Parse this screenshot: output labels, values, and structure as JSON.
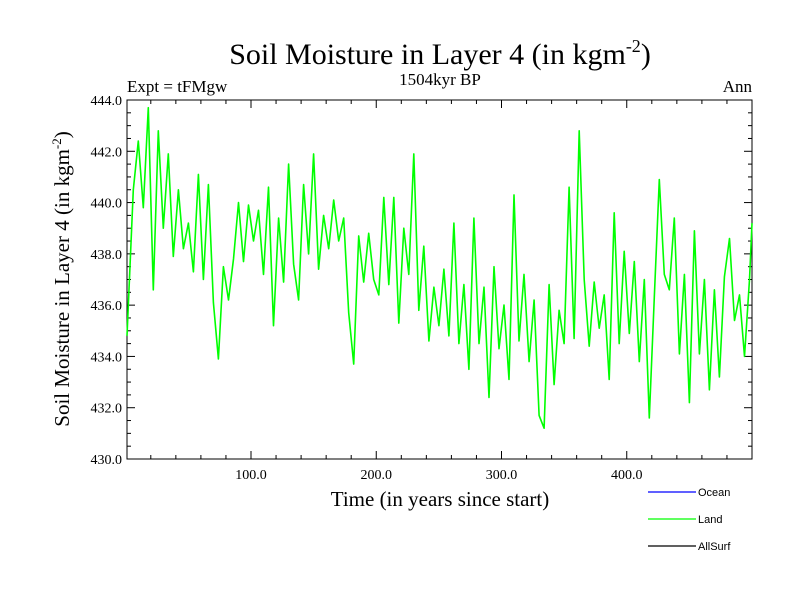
{
  "chart_data": {
    "type": "line",
    "title": "Soil Moisture in Layer 4 (in kgm",
    "title_superscript": "-2",
    "title_suffix": ")",
    "subtitle": "1504kyr BP",
    "left_label": "Expt = tFMgw",
    "right_label": "Ann",
    "xlabel": "Time (in years since start)",
    "ylabel": "Soil Moisture in Layer 4 (in kgm",
    "ylabel_superscript": "-2",
    "ylabel_suffix": ")",
    "xlim": [
      1,
      500
    ],
    "ylim": [
      430,
      444
    ],
    "x_ticks": [
      100,
      200,
      300,
      400
    ],
    "x_tick_labels": [
      "100.0",
      "200.0",
      "300.0",
      "400.0"
    ],
    "y_ticks": [
      430,
      432,
      434,
      436,
      438,
      440,
      442,
      444
    ],
    "y_tick_labels": [
      "430.0",
      "432.0",
      "434.0",
      "436.0",
      "438.0",
      "440.0",
      "442.0",
      "444.0"
    ],
    "legend_position": "bottom-right",
    "series": [
      {
        "name": "Ocean",
        "color": "#0000ff",
        "x": [],
        "values": []
      },
      {
        "name": "Land",
        "color": "#00ff00",
        "x": [
          1,
          6,
          10,
          14,
          18,
          22,
          26,
          30,
          34,
          38,
          42,
          46,
          50,
          54,
          58,
          62,
          66,
          70,
          74,
          78,
          82,
          86,
          90,
          94,
          98,
          102,
          106,
          110,
          114,
          118,
          122,
          126,
          130,
          134,
          138,
          142,
          146,
          150,
          154,
          158,
          162,
          166,
          170,
          174,
          178,
          182,
          186,
          190,
          194,
          198,
          202,
          206,
          210,
          214,
          218,
          222,
          226,
          230,
          234,
          238,
          242,
          246,
          250,
          254,
          258,
          262,
          266,
          270,
          274,
          278,
          282,
          286,
          290,
          294,
          298,
          302,
          306,
          310,
          314,
          318,
          322,
          326,
          330,
          334,
          338,
          342,
          346,
          350,
          354,
          358,
          362,
          366,
          370,
          374,
          378,
          382,
          386,
          390,
          394,
          398,
          402,
          406,
          410,
          414,
          418,
          422,
          426,
          430,
          434,
          438,
          442,
          446,
          450,
          454,
          458,
          462,
          466,
          470,
          474,
          478,
          482,
          486,
          490,
          494,
          498,
          500
        ],
        "values": [
          434.8,
          440.5,
          442.4,
          439.8,
          443.7,
          436.6,
          442.8,
          439.0,
          441.9,
          437.9,
          440.5,
          438.2,
          439.2,
          437.3,
          441.1,
          437.0,
          440.7,
          436.1,
          433.9,
          437.5,
          436.2,
          437.8,
          440.0,
          437.7,
          439.9,
          438.5,
          439.7,
          437.2,
          440.6,
          435.2,
          439.4,
          436.9,
          441.5,
          437.6,
          436.2,
          440.7,
          438.0,
          441.9,
          437.4,
          439.5,
          438.2,
          440.1,
          438.5,
          439.4,
          435.7,
          433.7,
          438.7,
          436.9,
          438.8,
          437.0,
          436.4,
          440.2,
          436.8,
          440.2,
          435.3,
          439.0,
          437.2,
          441.9,
          435.8,
          438.3,
          434.6,
          436.7,
          435.2,
          437.4,
          434.8,
          439.2,
          434.5,
          436.8,
          433.5,
          439.4,
          434.5,
          436.7,
          432.4,
          437.5,
          434.3,
          436.0,
          433.1,
          440.3,
          434.6,
          437.2,
          433.8,
          436.2,
          431.7,
          431.2,
          436.8,
          432.9,
          435.8,
          434.5,
          440.6,
          434.7,
          442.8,
          437.0,
          434.4,
          436.9,
          435.1,
          436.4,
          433.1,
          439.6,
          434.5,
          438.1,
          434.9,
          437.7,
          433.8,
          437.0,
          431.6,
          436.3,
          440.9,
          437.2,
          436.6,
          439.4,
          434.1,
          437.2,
          432.2,
          438.9,
          434.1,
          437.0,
          432.7,
          436.6,
          433.2,
          437.1,
          438.6,
          435.4,
          436.4,
          434.0,
          437.0,
          439.2
        ]
      },
      {
        "name": "AllSurf",
        "color": "#000000",
        "x": [],
        "values": []
      }
    ]
  }
}
